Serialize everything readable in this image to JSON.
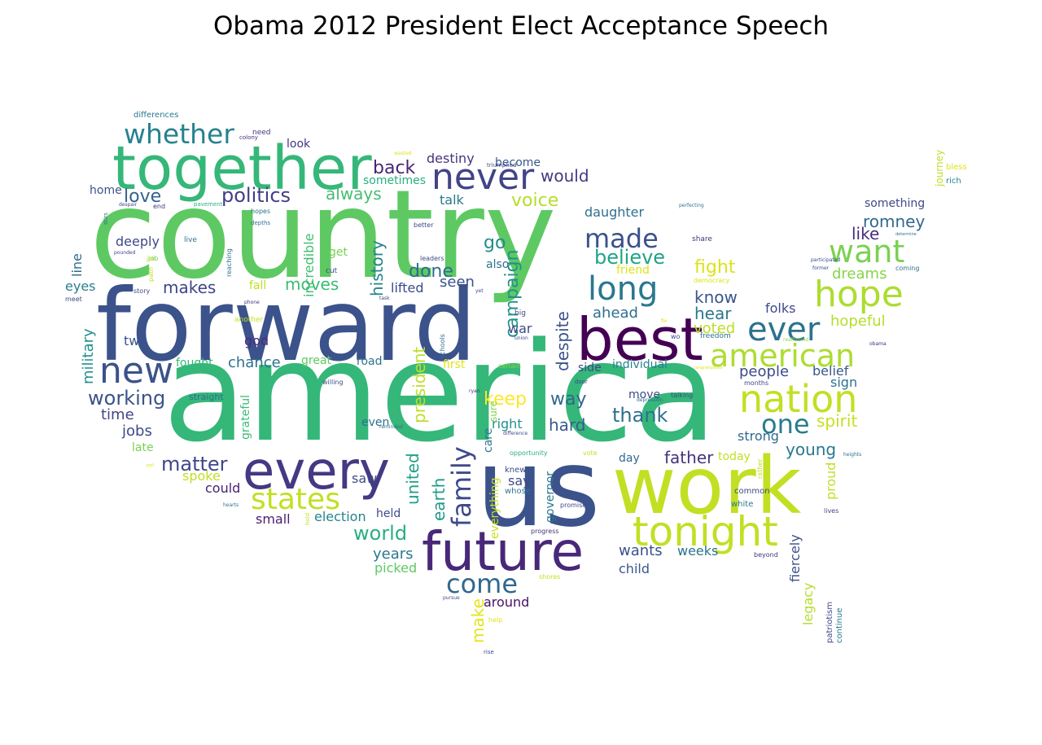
{
  "title": "Obama 2012 President Elect Acceptance Speech",
  "words": [
    {
      "text": "america",
      "color": "#35b779"
    },
    {
      "text": "country",
      "color": "#5ec962"
    },
    {
      "text": "forward",
      "color": "#3b528b"
    },
    {
      "text": "us",
      "color": "#3b528b"
    },
    {
      "text": "work",
      "color": "#c2df23"
    },
    {
      "text": "together",
      "color": "#35b779"
    },
    {
      "text": "best",
      "color": "#440154"
    },
    {
      "text": "every",
      "color": "#443983"
    },
    {
      "text": "future",
      "color": "#482878"
    },
    {
      "text": "tonight",
      "color": "#c2df23"
    },
    {
      "text": "nation",
      "color": "#c2df23"
    },
    {
      "text": "hope",
      "color": "#addc30"
    },
    {
      "text": "american",
      "color": "#addc30"
    },
    {
      "text": "never",
      "color": "#414487"
    },
    {
      "text": "new",
      "color": "#3b528b"
    },
    {
      "text": "whether",
      "color": "#26828e"
    },
    {
      "text": "long",
      "color": "#2a788e"
    },
    {
      "text": "want",
      "color": "#7ad151"
    },
    {
      "text": "ever",
      "color": "#2c728e"
    },
    {
      "text": "states",
      "color": "#c2df23"
    },
    {
      "text": "made",
      "color": "#3b528b"
    },
    {
      "text": "one",
      "color": "#287c8e"
    },
    {
      "text": "come",
      "color": "#31688e"
    },
    {
      "text": "family",
      "color": "#3e4a89"
    },
    {
      "text": "politics",
      "color": "#433e85"
    },
    {
      "text": "believe",
      "color": "#20a486"
    },
    {
      "text": "world",
      "color": "#29af7f"
    },
    {
      "text": "working",
      "color": "#3b528b"
    },
    {
      "text": "matter",
      "color": "#404688"
    },
    {
      "text": "back",
      "color": "#482475"
    },
    {
      "text": "love",
      "color": "#33638d"
    },
    {
      "text": "always",
      "color": "#44bf70"
    },
    {
      "text": "voice",
      "color": "#b5de2b"
    },
    {
      "text": "would",
      "color": "#453781"
    },
    {
      "text": "done",
      "color": "#2e6e8e"
    },
    {
      "text": "go",
      "color": "#228b8d"
    },
    {
      "text": "makes",
      "color": "#404688"
    },
    {
      "text": "moves",
      "color": "#3bbb75"
    },
    {
      "text": "history",
      "color": "#25848e"
    },
    {
      "text": "campaign",
      "color": "#21918c"
    },
    {
      "text": "despite",
      "color": "#3b528b"
    },
    {
      "text": "keep",
      "color": "#fde725"
    },
    {
      "text": "way",
      "color": "#31688e"
    },
    {
      "text": "thank",
      "color": "#2d708e"
    },
    {
      "text": "hard",
      "color": "#365c8d"
    },
    {
      "text": "president",
      "color": "#bddf26"
    },
    {
      "text": "earth",
      "color": "#1f9a8a"
    },
    {
      "text": "united",
      "color": "#1fa088"
    },
    {
      "text": "make",
      "color": "#e5e419"
    },
    {
      "text": "spirit",
      "color": "#c8e020"
    },
    {
      "text": "young",
      "color": "#2a788e"
    },
    {
      "text": "father",
      "color": "#46337e"
    },
    {
      "text": "fight",
      "color": "#dde318"
    },
    {
      "text": "know",
      "color": "#3a548c"
    },
    {
      "text": "hear",
      "color": "#2a788e"
    },
    {
      "text": "voted",
      "color": "#bade28"
    },
    {
      "text": "romney",
      "color": "#31688e"
    },
    {
      "text": "like",
      "color": "#472d7b"
    },
    {
      "text": "dreams",
      "color": "#86d549"
    },
    {
      "text": "hopeful",
      "color": "#b5de2b"
    },
    {
      "text": "folks",
      "color": "#3e4989"
    },
    {
      "text": "people",
      "color": "#3e4989"
    },
    {
      "text": "belief",
      "color": "#38598c"
    },
    {
      "text": "sign",
      "color": "#2c728e"
    },
    {
      "text": "strong",
      "color": "#306a8e"
    },
    {
      "text": "fiercely",
      "color": "#3b528b"
    },
    {
      "text": "legacy",
      "color": "#b5de2b"
    },
    {
      "text": "proud",
      "color": "#bddf26"
    },
    {
      "text": "wants",
      "color": "#3b528b"
    },
    {
      "text": "weeks",
      "color": "#2c728e"
    },
    {
      "text": "child",
      "color": "#38598c"
    },
    {
      "text": "years",
      "color": "#2a788e"
    },
    {
      "text": "picked",
      "color": "#5ec962"
    },
    {
      "text": "around",
      "color": "#471063"
    },
    {
      "text": "chance",
      "color": "#2c728e"
    },
    {
      "text": "god",
      "color": "#472c7a"
    },
    {
      "text": "two",
      "color": "#3a548c"
    },
    {
      "text": "time",
      "color": "#404688"
    },
    {
      "text": "jobs",
      "color": "#3e4989"
    },
    {
      "text": "late",
      "color": "#7ad151"
    },
    {
      "text": "spoke",
      "color": "#c2df23"
    },
    {
      "text": "could",
      "color": "#482173"
    },
    {
      "text": "small",
      "color": "#481f70"
    },
    {
      "text": "election",
      "color": "#25838e"
    },
    {
      "text": "held",
      "color": "#3e4989"
    },
    {
      "text": "saw",
      "color": "#3e4989"
    },
    {
      "text": "say",
      "color": "#3e4989"
    },
    {
      "text": "right",
      "color": "#20928c"
    },
    {
      "text": "care",
      "color": "#2a788e"
    },
    {
      "text": "even",
      "color": "#2d708e"
    },
    {
      "text": "military",
      "color": "#21918c"
    },
    {
      "text": "line",
      "color": "#306a8e"
    },
    {
      "text": "eyes",
      "color": "#277f8e"
    },
    {
      "text": "deeply",
      "color": "#3e4989"
    },
    {
      "text": "home",
      "color": "#3b528b"
    },
    {
      "text": "look",
      "color": "#46337e"
    },
    {
      "text": "destiny",
      "color": "#46337e"
    },
    {
      "text": "sometimes",
      "color": "#29af7f"
    },
    {
      "text": "talk",
      "color": "#2a788e"
    },
    {
      "text": "become",
      "color": "#38598c"
    },
    {
      "text": "daughter",
      "color": "#2d708e"
    },
    {
      "text": "incredible",
      "color": "#40bd72"
    },
    {
      "text": "get",
      "color": "#7ad151"
    },
    {
      "text": "fall",
      "color": "#c2df23"
    },
    {
      "text": "lifted",
      "color": "#3e4989"
    },
    {
      "text": "seen",
      "color": "#3b528b"
    },
    {
      "text": "also",
      "color": "#2c728e"
    },
    {
      "text": "friend",
      "color": "#dde318"
    },
    {
      "text": "ahead",
      "color": "#2d708e"
    },
    {
      "text": "war",
      "color": "#3e4989"
    },
    {
      "text": "grateful",
      "color": "#3bbb75"
    },
    {
      "text": "fought",
      "color": "#35b779"
    },
    {
      "text": "great",
      "color": "#5ec962"
    },
    {
      "text": "road",
      "color": "#2c728e"
    },
    {
      "text": "first",
      "color": "#dde318"
    },
    {
      "text": "individual",
      "color": "#26828e"
    },
    {
      "text": "side",
      "color": "#3e4989"
    },
    {
      "text": "move",
      "color": "#3e4989"
    },
    {
      "text": "day",
      "color": "#306a8e"
    },
    {
      "text": "today",
      "color": "#c2df23"
    },
    {
      "text": "straight",
      "color": "#2c728e"
    },
    {
      "text": "something",
      "color": "#3e4989"
    },
    {
      "text": "journey",
      "color": "#bddf26"
    },
    {
      "text": "bless",
      "color": "#dde318"
    },
    {
      "text": "rich",
      "color": "#26828e"
    },
    {
      "text": "governor",
      "color": "#2a788e"
    },
    {
      "text": "everything",
      "color": "#c8e020"
    },
    {
      "text": "sure",
      "color": "#86d549"
    },
    {
      "text": "knew",
      "color": "#3e4989"
    },
    {
      "text": "whose",
      "color": "#2a788e"
    },
    {
      "text": "common",
      "color": "#3e4989"
    },
    {
      "text": "white",
      "color": "#2a788e"
    },
    {
      "text": "patriotism",
      "color": "#3e4989"
    },
    {
      "text": "continue",
      "color": "#2a788e"
    },
    {
      "text": "differences",
      "color": "#2a788e"
    },
    {
      "text": "need",
      "color": "#46337e"
    },
    {
      "text": "colony",
      "color": "#472d7b"
    },
    {
      "text": "wasted",
      "color": "#dde318"
    },
    {
      "text": "triumphed",
      "color": "#3e4989"
    },
    {
      "text": "perfecting",
      "color": "#2a788e"
    },
    {
      "text": "pavement",
      "color": "#29af7f"
    },
    {
      "text": "despair",
      "color": "#3e4989"
    },
    {
      "text": "stirs",
      "color": "#2c728e"
    },
    {
      "text": "end",
      "color": "#46337e"
    },
    {
      "text": "hopes",
      "color": "#2c728e"
    },
    {
      "text": "better",
      "color": "#3e4989"
    },
    {
      "text": "depths",
      "color": "#2c728e"
    },
    {
      "text": "live",
      "color": "#2c728e"
    },
    {
      "text": "pounded",
      "color": "#3e4989"
    },
    {
      "text": "reaching",
      "color": "#2c728e"
    },
    {
      "text": "job",
      "color": "#5ec962"
    },
    {
      "text": "path",
      "color": "#c2df23"
    },
    {
      "text": "cut",
      "color": "#3e4989"
    },
    {
      "text": "leaders",
      "color": "#3e4989"
    },
    {
      "text": "story",
      "color": "#3e4989"
    },
    {
      "text": "meet",
      "color": "#3e4989"
    },
    {
      "text": "phone",
      "color": "#472d7b"
    },
    {
      "text": "another",
      "color": "#c2df23"
    },
    {
      "text": "task",
      "color": "#3e4989"
    },
    {
      "text": "yet",
      "color": "#3e4989"
    },
    {
      "text": "big",
      "color": "#3e4989"
    },
    {
      "text": "union",
      "color": "#3e4989"
    },
    {
      "text": "schools",
      "color": "#2c728e"
    },
    {
      "text": "certain",
      "color": "#86d549"
    },
    {
      "text": "willing",
      "color": "#3e4989"
    },
    {
      "text": "ryan",
      "color": "#46337e"
    },
    {
      "text": "difference",
      "color": "#3e4989"
    },
    {
      "text": "door",
      "color": "#3e4989"
    },
    {
      "text": "depression",
      "color": "#2c728e"
    },
    {
      "text": "talking",
      "color": "#3e4989"
    },
    {
      "text": "wo",
      "color": "#3e4989"
    },
    {
      "text": "fix",
      "color": "#dde318"
    },
    {
      "text": "freedom",
      "color": "#2c728e"
    },
    {
      "text": "months",
      "color": "#3e4989"
    },
    {
      "text": "reaffirmed",
      "color": "#86d549"
    },
    {
      "text": "congratulated",
      "color": "#dde318"
    },
    {
      "text": "obama",
      "color": "#472d7b"
    },
    {
      "text": "democracy",
      "color": "#dde318"
    },
    {
      "text": "former",
      "color": "#3e4989"
    },
    {
      "text": "participated",
      "color": "#3e4989"
    },
    {
      "text": "coming",
      "color": "#2c728e"
    },
    {
      "text": "share",
      "color": "#46337e"
    },
    {
      "text": "determine",
      "color": "#2c728e"
    },
    {
      "text": "heights",
      "color": "#2c728e"
    },
    {
      "text": "rather",
      "color": "#c2df23"
    },
    {
      "text": "beyond",
      "color": "#46337e"
    },
    {
      "text": "lives",
      "color": "#3e4989"
    },
    {
      "text": "opportunity",
      "color": "#29af7f"
    },
    {
      "text": "vote",
      "color": "#c2df23"
    },
    {
      "text": "reminded",
      "color": "#2c728e"
    },
    {
      "text": "promise",
      "color": "#3e4989"
    },
    {
      "text": "progress",
      "color": "#46337e"
    },
    {
      "text": "shores",
      "color": "#c2df23"
    },
    {
      "text": "pursue",
      "color": "#3e4989"
    },
    {
      "text": "help",
      "color": "#dde318"
    },
    {
      "text": "rise",
      "color": "#3e4989"
    },
    {
      "text": "hearts",
      "color": "#2c728e"
    },
    {
      "text": "hold",
      "color": "#c2df23"
    },
    {
      "text": "poll",
      "color": "#dde318"
    },
    {
      "text": "job",
      "color": "#c2df23"
    }
  ]
}
